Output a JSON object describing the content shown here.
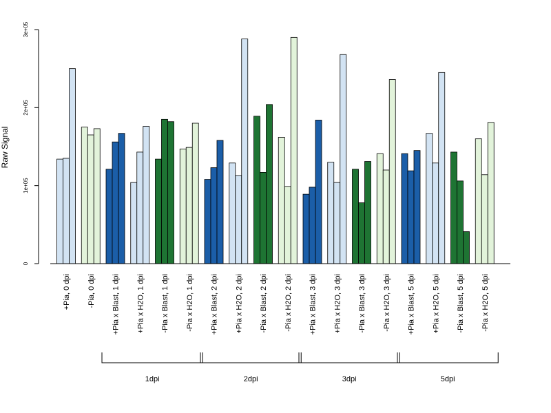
{
  "chart_data": {
    "type": "bar",
    "ylabel": "Raw Signal",
    "ylim": [
      0,
      300000
    ],
    "yticks": [
      0,
      100000,
      200000,
      300000
    ],
    "ytick_labels": [
      "0",
      "1e+05",
      "2e+05",
      "3e+05"
    ],
    "grid": false,
    "legend": "none",
    "colors": {
      "light_blue": "#d2e3f3",
      "dark_blue": "#1b5ea8",
      "light_green": "#e2f3da",
      "dark_green": "#1e7433"
    },
    "categories": [
      {
        "label": "+Pia, 0 dpi",
        "color": "light_blue",
        "values": [
          134000,
          135000,
          250000
        ]
      },
      {
        "label": "-Pia, 0 dpi",
        "color": "light_green",
        "values": [
          175000,
          165000,
          173000
        ]
      },
      {
        "label": "+Pia x Blast, 1 dpi",
        "color": "dark_blue",
        "values": [
          121000,
          156000,
          167000
        ]
      },
      {
        "label": "+Pia x H2O, 1 dpi",
        "color": "light_blue",
        "values": [
          104000,
          143000,
          176000
        ]
      },
      {
        "label": "-Pia x Blast, 1 dpi",
        "color": "dark_green",
        "values": [
          134000,
          185000,
          182000
        ]
      },
      {
        "label": "-Pia x H2O, 1 dpi",
        "color": "light_green",
        "values": [
          147000,
          149000,
          180000
        ]
      },
      {
        "label": "+Pia x Blast, 2 dpi",
        "color": "dark_blue",
        "values": [
          108000,
          123000,
          158000
        ]
      },
      {
        "label": "+Pia x H2O, 2 dpi",
        "color": "light_blue",
        "values": [
          129000,
          113000,
          288000
        ]
      },
      {
        "label": "-Pia x Blast, 2 dpi",
        "color": "dark_green",
        "values": [
          189000,
          117000,
          204000
        ]
      },
      {
        "label": "-Pia x H2O, 2 dpi",
        "color": "light_green",
        "values": [
          162000,
          99000,
          290000
        ]
      },
      {
        "label": "+Pia x Blast, 3 dpi",
        "color": "dark_blue",
        "values": [
          89000,
          98000,
          184000
        ]
      },
      {
        "label": "+Pia x H2O, 3 dpi",
        "color": "light_blue",
        "values": [
          130000,
          104000,
          268000
        ]
      },
      {
        "label": "-Pia x Blast, 3 dpi",
        "color": "dark_green",
        "values": [
          121000,
          78000,
          131000
        ]
      },
      {
        "label": "-Pia x H2O, 3 dpi",
        "color": "light_green",
        "values": [
          141000,
          120000,
          236000
        ]
      },
      {
        "label": "+Pia x Blast, 5 dpi",
        "color": "dark_blue",
        "values": [
          141000,
          119000,
          145000
        ]
      },
      {
        "label": "+Pia x H2O, 5 dpi",
        "color": "light_blue",
        "values": [
          167000,
          129000,
          245000
        ]
      },
      {
        "label": "-Pia x Blast, 5 dpi",
        "color": "dark_green",
        "values": [
          143000,
          106000,
          41000
        ]
      },
      {
        "label": "-Pia x H2O, 5 dpi",
        "color": "light_green",
        "values": [
          160000,
          114000,
          181000
        ]
      }
    ],
    "groups": [
      {
        "label": "1dpi",
        "from": 2,
        "to": 5
      },
      {
        "label": "2dpi",
        "from": 6,
        "to": 9
      },
      {
        "label": "3dpi",
        "from": 10,
        "to": 13
      },
      {
        "label": "5dpi",
        "from": 14,
        "to": 17
      }
    ]
  }
}
